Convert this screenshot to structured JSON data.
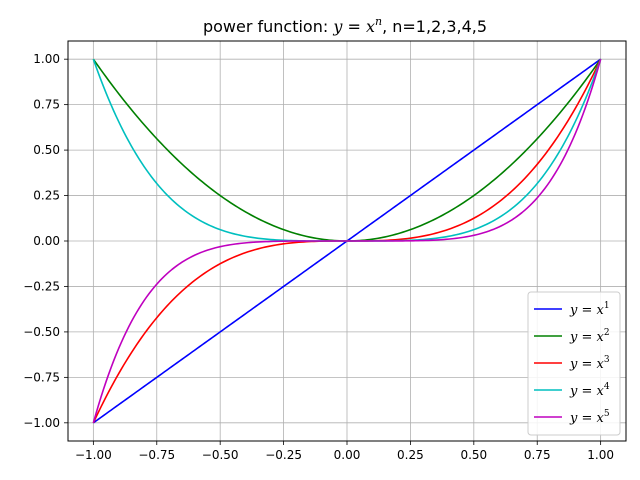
{
  "chart_data": {
    "type": "line",
    "title": {
      "prefix": "power function: ",
      "var_y": "y",
      "equals": " = ",
      "var_x": "x",
      "exponent": "n",
      "suffix": ", n=1,2,3,4,5"
    },
    "xlabel": "",
    "ylabel": "",
    "xlim": [
      -1.1,
      1.1
    ],
    "ylim": [
      -1.1,
      1.1
    ],
    "x_domain": [
      -1.0,
      1.0
    ],
    "x_ticks": [
      -1.0,
      -0.75,
      -0.5,
      -0.25,
      0.0,
      0.25,
      0.5,
      0.75,
      1.0
    ],
    "x_tick_labels": [
      "−1.00",
      "−0.75",
      "−0.50",
      "−0.25",
      "0.00",
      "0.25",
      "0.50",
      "0.75",
      "1.00"
    ],
    "y_ticks": [
      -1.0,
      -0.75,
      -0.5,
      -0.25,
      0.0,
      0.25,
      0.5,
      0.75,
      1.0
    ],
    "y_tick_labels": [
      "−1.00",
      "−0.75",
      "−0.50",
      "−0.25",
      "0.00",
      "0.25",
      "0.50",
      "0.75",
      "1.00"
    ],
    "grid": true,
    "legend_position": "lower-right",
    "series": [
      {
        "name": "y = x1",
        "label_base": "y = x",
        "exponent": 1,
        "color": "#0000ff"
      },
      {
        "name": "y = x2",
        "label_base": "y = x",
        "exponent": 2,
        "color": "#008000"
      },
      {
        "name": "y = x3",
        "label_base": "y = x",
        "exponent": 3,
        "color": "#ff0000"
      },
      {
        "name": "y = x4",
        "label_base": "y = x",
        "exponent": 4,
        "color": "#00bfbf"
      },
      {
        "name": "y = x5",
        "label_base": "y = x",
        "exponent": 5,
        "color": "#bf00bf"
      }
    ]
  }
}
